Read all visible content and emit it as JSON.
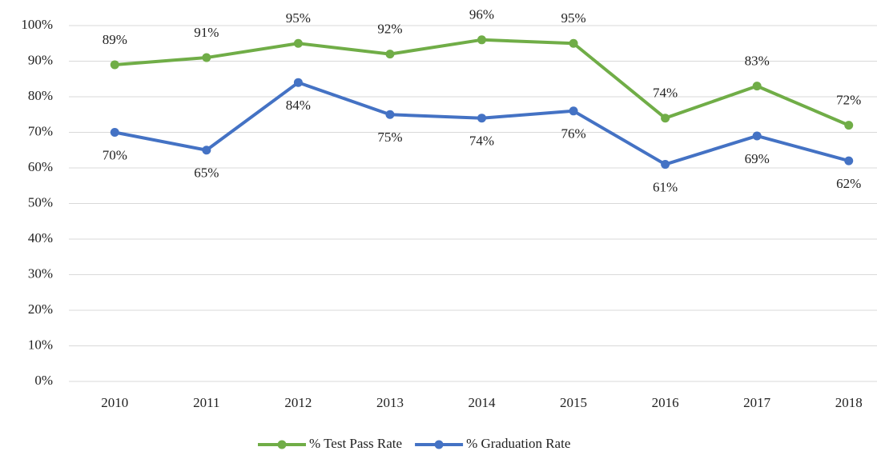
{
  "chart_data": {
    "type": "line",
    "categories": [
      "2010",
      "2011",
      "2012",
      "2013",
      "2014",
      "2015",
      "2016",
      "2017",
      "2018"
    ],
    "series": [
      {
        "name": "% Test Pass Rate",
        "color": "#70ad47",
        "values": [
          89,
          91,
          95,
          92,
          96,
          95,
          74,
          83,
          72
        ],
        "value_labels": [
          "89%",
          "91%",
          "95%",
          "92%",
          "96%",
          "95%",
          "74%",
          "83%",
          "72%"
        ]
      },
      {
        "name": "% Graduation Rate",
        "color": "#4472c4",
        "values": [
          70,
          65,
          84,
          75,
          74,
          76,
          61,
          69,
          62
        ],
        "value_labels": [
          "70%",
          "65%",
          "84%",
          "75%",
          "74%",
          "76%",
          "61%",
          "69%",
          "62%"
        ]
      }
    ],
    "ylim": [
      0,
      100
    ],
    "yticks": [
      {
        "value": 0,
        "label": "0%"
      },
      {
        "value": 10,
        "label": "10%"
      },
      {
        "value": 20,
        "label": "20%"
      },
      {
        "value": 30,
        "label": "30%"
      },
      {
        "value": 40,
        "label": "40%"
      },
      {
        "value": 50,
        "label": "50%"
      },
      {
        "value": 60,
        "label": "60%"
      },
      {
        "value": 70,
        "label": "70%"
      },
      {
        "value": 80,
        "label": "80%"
      },
      {
        "value": 90,
        "label": "90%"
      },
      {
        "value": 100,
        "label": "100%"
      }
    ],
    "grid": true,
    "legend": "bottom"
  }
}
